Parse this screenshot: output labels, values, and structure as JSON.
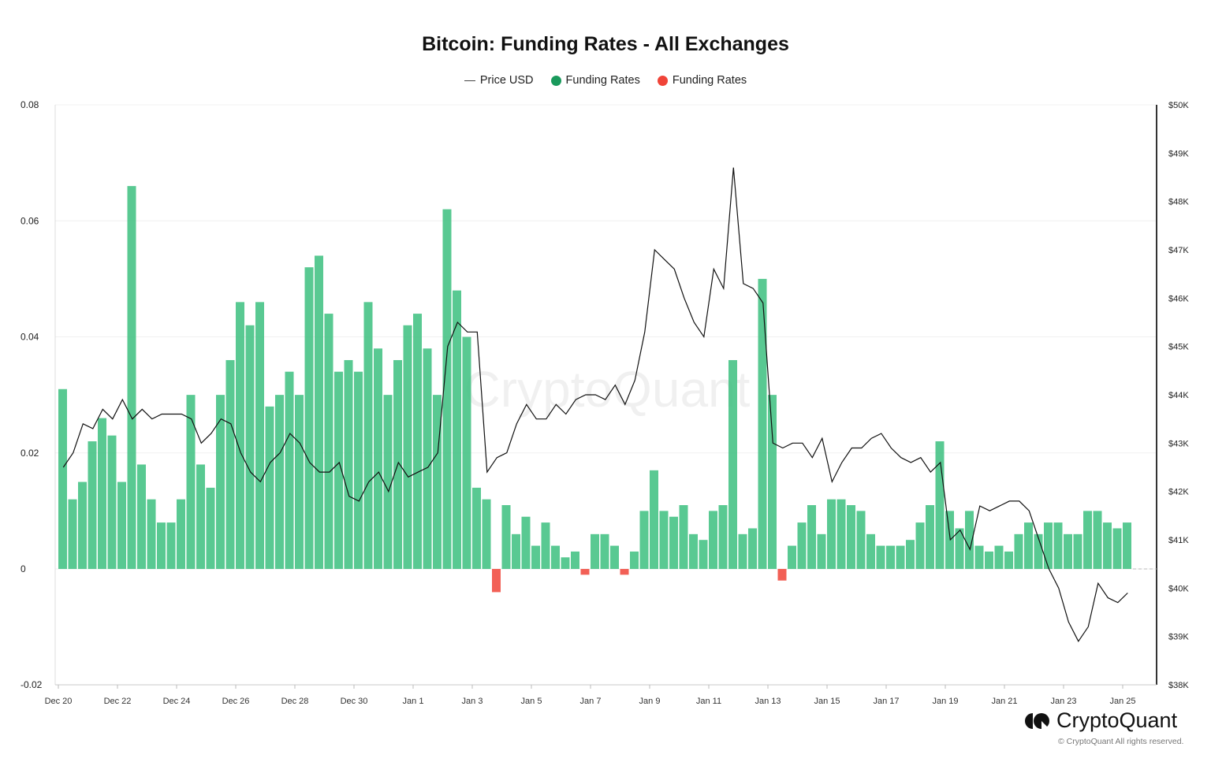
{
  "chart_data": {
    "type": "bar+line",
    "title": "Bitcoin: Funding Rates - All Exchanges",
    "legend": [
      {
        "name": "Price USD",
        "color": "#444444",
        "marker": "line"
      },
      {
        "name": "Funding Rates",
        "color": "#1a9a5c",
        "marker": "dot"
      },
      {
        "name": "Funding Rates",
        "color": "#f04438",
        "marker": "dot"
      }
    ],
    "legend_placement": "top-center",
    "colors": {
      "positive": "#3cc07f",
      "negative": "#f04438",
      "price": "#111111"
    },
    "x_ticks": [
      "Dec 20",
      "Dec 22",
      "Dec 24",
      "Dec 26",
      "Dec 28",
      "Dec 30",
      "Jan 1",
      "Jan 3",
      "Jan 5",
      "Jan 7",
      "Jan 9",
      "Jan 11",
      "Jan 13",
      "Jan 15",
      "Jan 17",
      "Jan 19",
      "Jan 21",
      "Jan 23",
      "Jan 25"
    ],
    "y_left": {
      "ticks": [
        "0.08",
        "0.06",
        "0.04",
        "0.02",
        "0",
        "-0.02"
      ],
      "range": [
        -0.02,
        0.08
      ]
    },
    "y_right": {
      "ticks": [
        "$50K",
        "$49K",
        "$48K",
        "$47K",
        "$46K",
        "$45K",
        "$44K",
        "$43K",
        "$42K",
        "$41K",
        "$40K",
        "$39K",
        "$38K"
      ],
      "range": [
        38,
        50
      ],
      "unit": "$K"
    },
    "grid": true,
    "sample_hours": 8,
    "funding": {
      "Dec 20": [
        0.031,
        0.012,
        0.015
      ],
      "Dec 21": [
        0.022,
        0.026,
        0.023
      ],
      "Dec 22": [
        0.015,
        0.066,
        0.018
      ],
      "Dec 23": [
        0.012,
        0.008,
        0.008
      ],
      "Dec 24": [
        0.012,
        0.03,
        0.018
      ],
      "Dec 25": [
        0.014,
        0.03,
        0.036
      ],
      "Dec 26": [
        0.046,
        0.042,
        0.046
      ],
      "Dec 27": [
        0.028,
        0.03,
        0.034
      ],
      "Dec 28": [
        0.03,
        0.052,
        0.054
      ],
      "Dec 29": [
        0.044,
        0.034,
        0.036
      ],
      "Dec 30": [
        0.034,
        0.046,
        0.038
      ],
      "Dec 31": [
        0.03,
        0.036,
        0.042
      ],
      "Jan 1": [
        0.044,
        0.038,
        0.03
      ],
      "Jan 2": [
        0.062,
        0.048,
        0.04
      ],
      "Jan 3": [
        0.014,
        0.012,
        -0.004
      ],
      "Jan 4": [
        0.011,
        0.006,
        0.009
      ],
      "Jan 5": [
        0.004,
        0.008,
        0.004
      ],
      "Jan 6": [
        0.002,
        0.003,
        -0.001
      ],
      "Jan 7": [
        0.006,
        0.006,
        0.004
      ],
      "Jan 8": [
        -0.001,
        0.003,
        0.01
      ],
      "Jan 9": [
        0.017,
        0.01,
        0.009
      ],
      "Jan 10": [
        0.011,
        0.006,
        0.005
      ],
      "Jan 11": [
        0.01,
        0.011,
        0.036
      ],
      "Jan 12": [
        0.006,
        0.007,
        0.05
      ],
      "Jan 13": [
        0.03,
        -0.002,
        0.004
      ],
      "Jan 14": [
        0.008,
        0.011,
        0.006
      ],
      "Jan 15": [
        0.012,
        0.012,
        0.011
      ],
      "Jan 16": [
        0.01,
        0.006,
        0.004
      ],
      "Jan 17": [
        0.004,
        0.004,
        0.005
      ],
      "Jan 18": [
        0.008,
        0.011,
        0.022
      ],
      "Jan 19": [
        0.01,
        0.007,
        0.01
      ],
      "Jan 20": [
        0.004,
        0.003,
        0.004
      ],
      "Jan 21": [
        0.003,
        0.006,
        0.008
      ],
      "Jan 22": [
        0.006,
        0.008,
        0.008
      ],
      "Jan 23": [
        0.006,
        0.006,
        0.01
      ],
      "Jan 24": [
        0.01,
        0.008,
        0.007
      ],
      "Jan 25": [
        0.008
      ]
    },
    "price_k": {
      "Dec 20": [
        42.5,
        42.8,
        43.4
      ],
      "Dec 21": [
        43.3,
        43.7,
        43.5
      ],
      "Dec 22": [
        43.9,
        43.5,
        43.7
      ],
      "Dec 23": [
        43.5,
        43.6,
        43.6
      ],
      "Dec 24": [
        43.6,
        43.5,
        43.0
      ],
      "Dec 25": [
        43.2,
        43.5,
        43.4
      ],
      "Dec 26": [
        42.8,
        42.4,
        42.2
      ],
      "Dec 27": [
        42.6,
        42.8,
        43.2
      ],
      "Dec 28": [
        43.0,
        42.6,
        42.4
      ],
      "Dec 29": [
        42.4,
        42.6,
        41.9
      ],
      "Dec 30": [
        41.8,
        42.2,
        42.4
      ],
      "Dec 31": [
        42.0,
        42.6,
        42.3
      ],
      "Jan 1": [
        42.4,
        42.5,
        42.8
      ],
      "Jan 2": [
        45.0,
        45.5,
        45.3
      ],
      "Jan 3": [
        45.3,
        42.4,
        42.7
      ],
      "Jan 4": [
        42.8,
        43.4,
        43.8
      ],
      "Jan 5": [
        43.5,
        43.5,
        43.8
      ],
      "Jan 6": [
        43.6,
        43.9,
        44.0
      ],
      "Jan 7": [
        44.0,
        43.9,
        44.2
      ],
      "Jan 8": [
        43.8,
        44.3,
        45.3
      ],
      "Jan 9": [
        47.0,
        46.8,
        46.6
      ],
      "Jan 10": [
        46.0,
        45.5,
        45.2
      ],
      "Jan 11": [
        46.6,
        46.2,
        48.7
      ],
      "Jan 12": [
        46.3,
        46.2,
        45.9
      ],
      "Jan 13": [
        43.0,
        42.9,
        43.0
      ],
      "Jan 14": [
        43.0,
        42.7,
        43.1
      ],
      "Jan 15": [
        42.2,
        42.6,
        42.9
      ],
      "Jan 16": [
        42.9,
        43.1,
        43.2
      ],
      "Jan 17": [
        42.9,
        42.7,
        42.6
      ],
      "Jan 18": [
        42.7,
        42.4,
        42.6
      ],
      "Jan 19": [
        41.0,
        41.2,
        40.8
      ],
      "Jan 20": [
        41.7,
        41.6,
        41.7
      ],
      "Jan 21": [
        41.8,
        41.8,
        41.6
      ],
      "Jan 22": [
        41.0,
        40.4,
        40.0
      ],
      "Jan 23": [
        39.3,
        38.9,
        39.2
      ],
      "Jan 24": [
        40.1,
        39.8,
        39.7
      ],
      "Jan 25": [
        39.9
      ]
    },
    "watermark": "CryptoQuant"
  },
  "brand": {
    "name": "CryptoQuant",
    "copyright": "© CryptoQuant All rights reserved."
  }
}
